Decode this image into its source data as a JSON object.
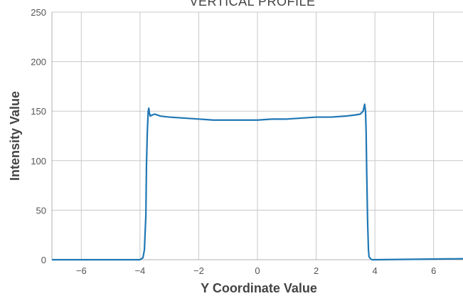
{
  "chart_data": {
    "type": "line",
    "title": "VERTICAL PROFILE",
    "xlabel": "Y Coordinate Value",
    "ylabel": "Intensity Value",
    "xlim": [
      -7,
      7
    ],
    "ylim": [
      0,
      250
    ],
    "x_ticks": [
      -6,
      -4,
      -2,
      0,
      2,
      4,
      6
    ],
    "x_tick_labels": [
      "−6",
      "−4",
      "−2",
      "0",
      "2",
      "4",
      "6"
    ],
    "y_ticks": [
      0,
      50,
      100,
      150,
      200,
      250
    ],
    "y_tick_labels": [
      "0",
      "50",
      "100",
      "150",
      "200",
      "250"
    ],
    "grid": true,
    "series": [
      {
        "color": "#1f77b4",
        "x": [
          -7,
          -4.0,
          -3.9,
          -3.85,
          -3.8,
          -3.78,
          -3.75,
          -3.72,
          -3.7,
          -3.68,
          -3.65,
          -3.6,
          -3.5,
          -3.3,
          -3.0,
          -2.5,
          -2.0,
          -1.5,
          -1.0,
          -0.5,
          0,
          0.5,
          1.0,
          1.5,
          2.0,
          2.5,
          3.0,
          3.3,
          3.5,
          3.6,
          3.65,
          3.68,
          3.7,
          3.72,
          3.75,
          3.78,
          3.8,
          3.85,
          3.9,
          4.0,
          7
        ],
        "y": [
          0,
          0,
          2,
          10,
          45,
          95,
          130,
          150,
          153,
          148,
          145,
          146,
          147,
          145,
          144,
          143,
          142,
          141,
          141,
          141,
          141,
          142,
          142,
          143,
          144,
          144,
          145,
          146,
          147,
          150,
          157,
          150,
          130,
          90,
          40,
          10,
          3,
          1,
          0,
          0,
          1
        ]
      }
    ]
  }
}
